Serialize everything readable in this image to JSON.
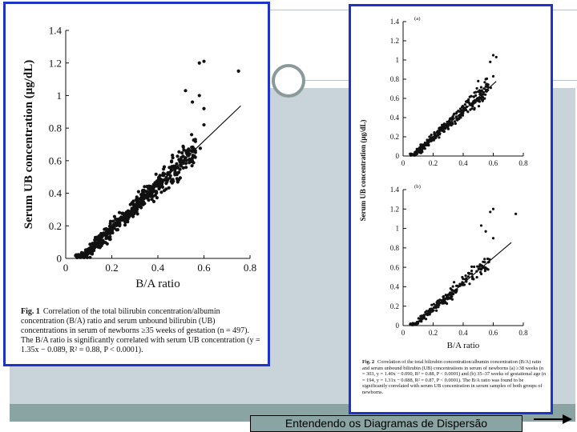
{
  "slide": {
    "bottom_label": "Entendendo os  Diagramas de Dispersão",
    "accent_color": "#1f33c9",
    "band_color": "#c8d3da",
    "arrow_icon": "right-arrow-icon"
  },
  "figure1": {
    "caption_bold": "Fig. 1",
    "caption_text": "Correlation of the total bilirubin concentration/albumin concentration (B/A) ratio and serum unbound bilirubin (UB) concentrations in serum of newborns ≥35 weeks of gestation (n = 497). The B/A ratio is significantly correlated with serum UB concentration (y = 1.35x − 0.089, R² = 0.88, P < 0.0001)."
  },
  "figure2": {
    "caption_bold": "Fig. 2",
    "caption_text": "Correlation of the total bilirubin concentration/albumin concentration (B/A) ratio and serum unbound bilirubin (UB) concentrations in serum of newborns (a) ≥38 weeks (n = 303, y = 1.40x − 0.090, R² = 0.88, P < 0.0001) and (b) 35–37 weeks of gestational age (n = 194, y = 1.31x − 0.088, R² = 0.87, P < 0.0001). The B/A ratio was found to be significantly correlated with serum UB concentration in serum samples of both groups of newborns."
  },
  "chart_data": [
    {
      "id": "fig1",
      "type": "scatter",
      "xlabel": "B/A ratio",
      "ylabel": "Serum UB concentration  (μg/dL)",
      "xlim": [
        0,
        0.8
      ],
      "ylim": [
        0,
        1.4
      ],
      "xticks": [
        "0",
        "0.2",
        "0.4",
        "0.6",
        "0.8"
      ],
      "yticks": [
        "0",
        "0.2",
        "0.4",
        "0.6",
        "0.8",
        "1",
        "1.2",
        "1.4"
      ],
      "n": 497,
      "fit": {
        "slope": 1.35,
        "intercept": -0.089,
        "x_range": [
          0.066,
          0.76
        ]
      },
      "outliers": [
        [
          0.6,
          1.21
        ],
        [
          0.58,
          1.2
        ],
        [
          0.75,
          1.15
        ],
        [
          0.52,
          1.03
        ],
        [
          0.55,
          0.96
        ],
        [
          0.58,
          1.0
        ],
        [
          0.6,
          0.92
        ],
        [
          0.6,
          0.82
        ]
      ],
      "grid": false
    },
    {
      "id": "fig2a",
      "type": "scatter",
      "panel_label": "(a)",
      "xlabel": "",
      "ylabel": "Serum UB concentration  (μg/dL)",
      "xlim": [
        0,
        0.8
      ],
      "ylim": [
        0,
        1.4
      ],
      "xticks": [
        "0",
        "0.2",
        "0.4",
        "0.6",
        "0.8"
      ],
      "yticks": [
        "0",
        "0.2",
        "0.4",
        "0.6",
        "0.8",
        "1",
        "1.2",
        "1.4"
      ],
      "n": 303,
      "fit": {
        "slope": 1.4,
        "intercept": -0.09,
        "x_range": [
          0.064,
          0.62
        ]
      },
      "outliers": [
        [
          0.6,
          1.05
        ],
        [
          0.58,
          0.98
        ],
        [
          0.62,
          1.03
        ],
        [
          0.55,
          0.8
        ],
        [
          0.6,
          0.83
        ],
        [
          0.5,
          0.78
        ]
      ],
      "grid": false
    },
    {
      "id": "fig2b",
      "type": "scatter",
      "panel_label": "(b)",
      "xlabel": "B/A ratio",
      "ylabel": "",
      "xlim": [
        0,
        0.8
      ],
      "ylim": [
        0,
        1.4
      ],
      "xticks": [
        "0",
        "0.2",
        "0.4",
        "0.6",
        "0.8"
      ],
      "yticks": [
        "0",
        "0.2",
        "0.4",
        "0.6",
        "0.8",
        "1",
        "1.2",
        "1.4"
      ],
      "n": 194,
      "fit": {
        "slope": 1.31,
        "intercept": -0.088,
        "x_range": [
          0.067,
          0.72
        ]
      },
      "outliers": [
        [
          0.6,
          1.2
        ],
        [
          0.58,
          1.17
        ],
        [
          0.75,
          1.15
        ],
        [
          0.52,
          1.03
        ],
        [
          0.55,
          0.97
        ],
        [
          0.6,
          0.9
        ]
      ],
      "grid": false
    }
  ]
}
